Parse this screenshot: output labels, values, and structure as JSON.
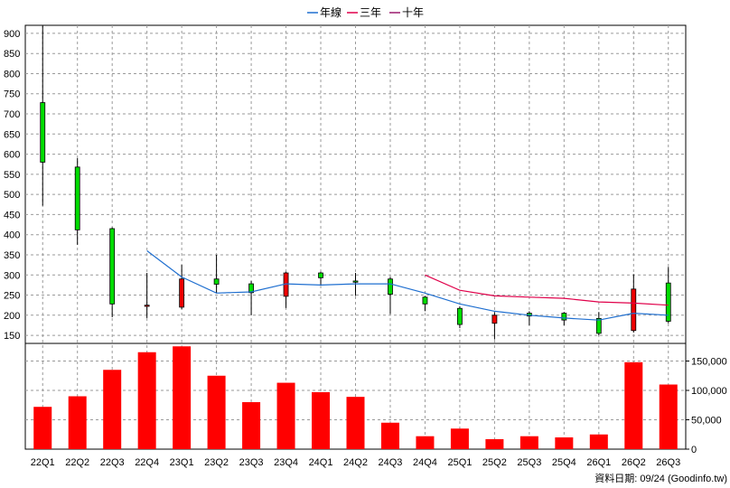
{
  "chart_data": {
    "type": "candlestick",
    "categories": [
      "22Q1",
      "22Q2",
      "22Q3",
      "22Q4",
      "23Q1",
      "23Q2",
      "23Q3",
      "23Q4",
      "24Q1",
      "24Q2",
      "24Q3",
      "24Q4",
      "25Q1",
      "25Q2",
      "25Q3",
      "25Q4",
      "26Q1",
      "26Q2",
      "26Q3"
    ],
    "legend": [
      {
        "name": "年線",
        "color": "#1f6fd0"
      },
      {
        "name": "三年",
        "color": "#e0004a"
      },
      {
        "name": "十年",
        "color": "#9b1a6e"
      }
    ],
    "price_axis": {
      "ylim": [
        130,
        920
      ],
      "ticks": [
        "900",
        "850",
        "800",
        "750",
        "700",
        "650",
        "600",
        "550",
        "500",
        "450",
        "400",
        "350",
        "300",
        "250",
        "200",
        "150"
      ]
    },
    "volume_axis": {
      "ylim": [
        0,
        180000
      ],
      "ticks": [
        "150,000",
        "100,000",
        "50,000",
        "0"
      ]
    },
    "candles": [
      {
        "open": 580,
        "close": 728,
        "high": 920,
        "low": 472
      },
      {
        "open": 412,
        "close": 568,
        "high": 590,
        "low": 375
      },
      {
        "open": 228,
        "close": 415,
        "high": 418,
        "low": 195
      },
      {
        "open": 225,
        "close": 222,
        "high": 305,
        "low": 193
      },
      {
        "open": 290,
        "close": 220,
        "high": 325,
        "low": 215
      },
      {
        "open": 277,
        "close": 290,
        "high": 350,
        "low": 255
      },
      {
        "open": 256,
        "close": 278,
        "high": 285,
        "low": 200
      },
      {
        "open": 305,
        "close": 247,
        "high": 308,
        "low": 218
      },
      {
        "open": 293,
        "close": 305,
        "high": 308,
        "low": 275
      },
      {
        "open": 282,
        "close": 285,
        "high": 305,
        "low": 248
      },
      {
        "open": 252,
        "close": 290,
        "high": 295,
        "low": 203
      },
      {
        "open": 228,
        "close": 245,
        "high": 248,
        "low": 210
      },
      {
        "open": 177,
        "close": 217,
        "high": 222,
        "low": 168
      },
      {
        "open": 200,
        "close": 180,
        "high": 208,
        "low": 140
      },
      {
        "open": 198,
        "close": 205,
        "high": 210,
        "low": 175
      },
      {
        "open": 188,
        "close": 205,
        "high": 208,
        "low": 175
      },
      {
        "open": 155,
        "close": 192,
        "high": 208,
        "low": 150
      },
      {
        "open": 265,
        "close": 162,
        "high": 302,
        "low": 157
      },
      {
        "open": 185,
        "close": 280,
        "high": 320,
        "low": 180
      }
    ],
    "series": [
      {
        "name": "年線",
        "values": [
          null,
          null,
          null,
          360,
          295,
          255,
          258,
          278,
          275,
          278,
          278,
          255,
          228,
          210,
          200,
          193,
          188,
          205,
          200
        ]
      },
      {
        "name": "三年",
        "values": [
          null,
          null,
          null,
          null,
          null,
          null,
          null,
          null,
          null,
          null,
          null,
          300,
          262,
          248,
          245,
          242,
          233,
          230,
          225
        ]
      }
    ],
    "volume": [
      72000,
      90000,
      135000,
      165000,
      175000,
      125000,
      80000,
      113000,
      97000,
      89000,
      45000,
      22000,
      35000,
      17000,
      22000,
      20000,
      25000,
      148000,
      110000
    ]
  },
  "footer": {
    "source_label": "資料日期: 09/24  (Goodinfo.tw)"
  }
}
